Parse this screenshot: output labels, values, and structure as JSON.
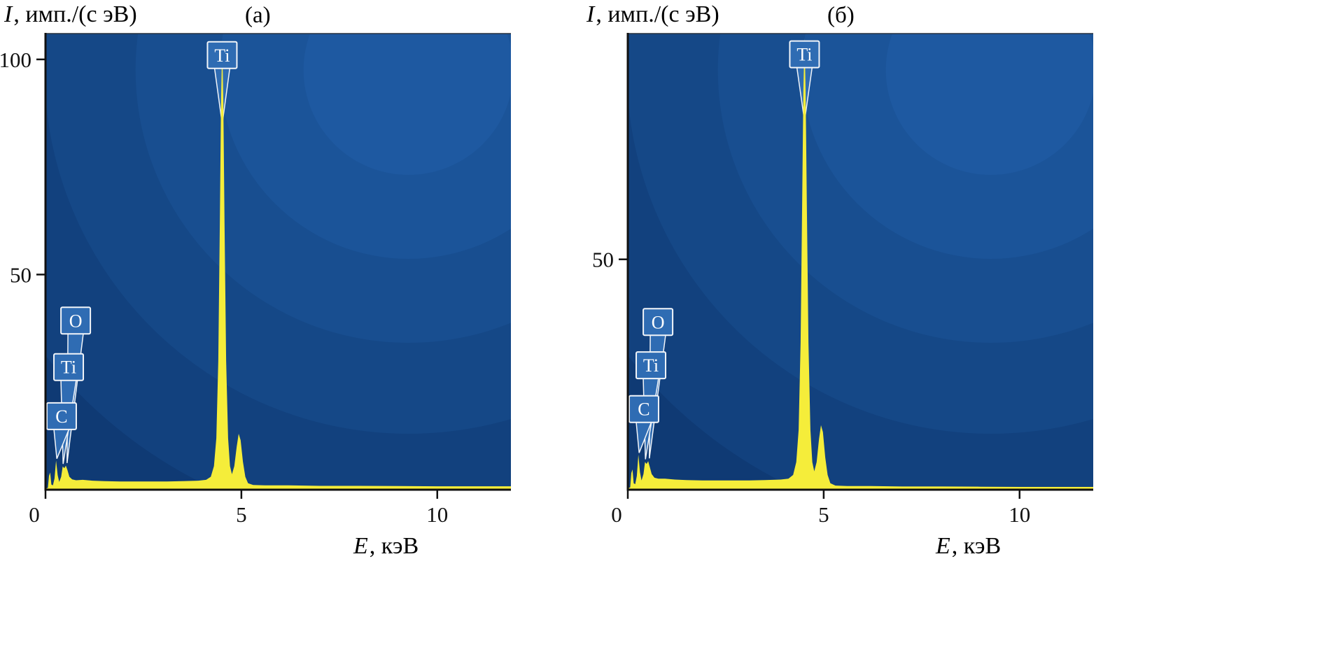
{
  "figure": {
    "kind": "EDS X-ray spectra, two panels"
  },
  "chart_data": [
    {
      "type": "area",
      "panel_label": "(а)",
      "title": "EDS spectrum (а)",
      "ylabel": "I, имп./(с эВ)",
      "ylabel_italic": "I",
      "ylabel_rest": ", имп./(с эВ)",
      "xlabel": "E, кэВ",
      "xlabel_italic": "E",
      "xlabel_rest": ", кэВ",
      "xlim": [
        0,
        11.88
      ],
      "ylim": [
        0,
        106
      ],
      "xticks": [
        0,
        5,
        10
      ],
      "yticks": [
        50,
        100
      ],
      "grid": false,
      "legend": null,
      "colors": {
        "spectrum": "#f5ed3a",
        "plot_bg": "#0f3a74",
        "bands": [
          "#12417e",
          "#154887",
          "#184e90",
          "#1b5499",
          "#1e59a1"
        ],
        "label_box": "#2f6cb3",
        "label_border": "#f2f5f9",
        "axis": "#111111"
      },
      "peaks": [
        {
          "element": "C",
          "energy_kev": 0.28,
          "intensity": 6.8
        },
        {
          "element": "Ti",
          "energy_kev": 0.45,
          "intensity": 5.4
        },
        {
          "element": "O",
          "energy_kev": 0.53,
          "intensity": 5.6
        },
        {
          "element": "Ti",
          "energy_kev": 4.51,
          "intensity": 104
        },
        {
          "element": "Ti",
          "energy_kev": 4.93,
          "intensity": 13
        }
      ],
      "points": [
        [
          0,
          0.3
        ],
        [
          0.06,
          0.4
        ],
        [
          0.09,
          3.2
        ],
        [
          0.12,
          4.0
        ],
        [
          0.15,
          1.2
        ],
        [
          0.19,
          1.0
        ],
        [
          0.23,
          2.6
        ],
        [
          0.27,
          6.8
        ],
        [
          0.31,
          3.4
        ],
        [
          0.35,
          1.8
        ],
        [
          0.4,
          3.0
        ],
        [
          0.44,
          5.4
        ],
        [
          0.48,
          5.0
        ],
        [
          0.52,
          5.6
        ],
        [
          0.56,
          4.6
        ],
        [
          0.61,
          3.0
        ],
        [
          0.68,
          2.4
        ],
        [
          0.78,
          2.2
        ],
        [
          0.95,
          2.3
        ],
        [
          1.2,
          2.1
        ],
        [
          1.5,
          2.0
        ],
        [
          1.9,
          1.9
        ],
        [
          2.3,
          1.9
        ],
        [
          2.7,
          1.9
        ],
        [
          3.1,
          1.9
        ],
        [
          3.5,
          2.0
        ],
        [
          3.9,
          2.1
        ],
        [
          4.1,
          2.3
        ],
        [
          4.22,
          3.0
        ],
        [
          4.3,
          5.5
        ],
        [
          4.36,
          12
        ],
        [
          4.41,
          30
        ],
        [
          4.45,
          62
        ],
        [
          4.48,
          90
        ],
        [
          4.51,
          104
        ],
        [
          4.54,
          90
        ],
        [
          4.57,
          62
        ],
        [
          4.61,
          30
        ],
        [
          4.66,
          12
        ],
        [
          4.71,
          5.5
        ],
        [
          4.76,
          3.6
        ],
        [
          4.82,
          5.5
        ],
        [
          4.88,
          10
        ],
        [
          4.93,
          13
        ],
        [
          4.98,
          11.5
        ],
        [
          5.04,
          6.5
        ],
        [
          5.1,
          3.0
        ],
        [
          5.17,
          1.5
        ],
        [
          5.3,
          1.1
        ],
        [
          5.6,
          1.0
        ],
        [
          6.2,
          1.0
        ],
        [
          7,
          0.9
        ],
        [
          8,
          0.9
        ],
        [
          9,
          0.85
        ],
        [
          10,
          0.8
        ],
        [
          11,
          0.8
        ],
        [
          11.88,
          0.8
        ]
      ],
      "annotations": [
        {
          "label": "Ti",
          "box_x_kev": 4.51,
          "box_y_val": 101.0,
          "tip_x_kev": 4.51,
          "tip_y_val": 85
        },
        {
          "label": "O",
          "box_x_kev": 0.77,
          "box_y_val": 39.3,
          "tip_x_kev": 0.55,
          "tip_y_val": 6.2
        },
        {
          "label": "Ti",
          "box_x_kev": 0.59,
          "box_y_val": 28.5,
          "tip_x_kev": 0.45,
          "tip_y_val": 6.0
        },
        {
          "label": "C",
          "box_x_kev": 0.41,
          "box_y_val": 17.1,
          "tip_x_kev": 0.29,
          "tip_y_val": 7.2
        }
      ]
    },
    {
      "type": "area",
      "panel_label": "(б)",
      "title": "EDS spectrum (б)",
      "ylabel": "I, имп./(с эВ)",
      "ylabel_italic": "I",
      "ylabel_rest": ", имп./(с эВ)",
      "xlabel": "E, кэВ",
      "xlabel_italic": "E",
      "xlabel_rest": ", кэВ",
      "xlim": [
        0,
        11.88
      ],
      "ylim": [
        0,
        99
      ],
      "xticks": [
        0,
        5,
        10
      ],
      "yticks": [
        50
      ],
      "grid": false,
      "legend": null,
      "colors": {
        "spectrum": "#f5ed3a",
        "plot_bg": "#0f3a74",
        "bands": [
          "#12417e",
          "#154887",
          "#184e90",
          "#1b5499",
          "#1e59a1"
        ],
        "label_box": "#2f6cb3",
        "label_border": "#f2f5f9",
        "axis": "#111111"
      },
      "peaks": [
        {
          "element": "C",
          "energy_kev": 0.28,
          "intensity": 7.6
        },
        {
          "element": "Ti",
          "energy_kev": 0.45,
          "intensity": 6.0
        },
        {
          "element": "O",
          "energy_kev": 0.53,
          "intensity": 6.2
        },
        {
          "element": "Ti",
          "energy_kev": 4.51,
          "intensity": 98
        },
        {
          "element": "Ti",
          "energy_kev": 4.93,
          "intensity": 14
        }
      ],
      "points": [
        [
          0,
          0.3
        ],
        [
          0.06,
          0.5
        ],
        [
          0.09,
          3.6
        ],
        [
          0.12,
          4.4
        ],
        [
          0.15,
          1.4
        ],
        [
          0.19,
          1.2
        ],
        [
          0.23,
          3.0
        ],
        [
          0.27,
          7.6
        ],
        [
          0.31,
          3.8
        ],
        [
          0.35,
          2.0
        ],
        [
          0.4,
          3.4
        ],
        [
          0.44,
          6.0
        ],
        [
          0.48,
          5.6
        ],
        [
          0.52,
          6.2
        ],
        [
          0.56,
          5.0
        ],
        [
          0.61,
          3.4
        ],
        [
          0.68,
          2.6
        ],
        [
          0.78,
          2.4
        ],
        [
          0.95,
          2.4
        ],
        [
          1.2,
          2.2
        ],
        [
          1.5,
          2.1
        ],
        [
          1.9,
          2.0
        ],
        [
          2.3,
          2.0
        ],
        [
          2.7,
          2.0
        ],
        [
          3.1,
          2.0
        ],
        [
          3.5,
          2.1
        ],
        [
          3.9,
          2.2
        ],
        [
          4.1,
          2.4
        ],
        [
          4.22,
          3.2
        ],
        [
          4.3,
          6.0
        ],
        [
          4.36,
          13
        ],
        [
          4.41,
          32
        ],
        [
          4.45,
          62
        ],
        [
          4.48,
          86
        ],
        [
          4.51,
          98
        ],
        [
          4.54,
          86
        ],
        [
          4.57,
          62
        ],
        [
          4.61,
          32
        ],
        [
          4.66,
          13
        ],
        [
          4.71,
          6.0
        ],
        [
          4.76,
          4.0
        ],
        [
          4.82,
          6.0
        ],
        [
          4.88,
          11
        ],
        [
          4.93,
          14
        ],
        [
          4.98,
          12.5
        ],
        [
          5.04,
          7.0
        ],
        [
          5.1,
          3.2
        ],
        [
          5.17,
          1.4
        ],
        [
          5.3,
          0.9
        ],
        [
          5.6,
          0.8
        ],
        [
          6.2,
          0.8
        ],
        [
          7,
          0.7
        ],
        [
          8,
          0.7
        ],
        [
          9,
          0.65
        ],
        [
          10,
          0.6
        ],
        [
          11,
          0.6
        ],
        [
          11.88,
          0.6
        ]
      ],
      "annotations": [
        {
          "label": "Ti",
          "box_x_kev": 4.51,
          "box_y_val": 94.5,
          "tip_x_kev": 4.51,
          "tip_y_val": 80
        },
        {
          "label": "O",
          "box_x_kev": 0.77,
          "box_y_val": 36.4,
          "tip_x_kev": 0.55,
          "tip_y_val": 6.8
        },
        {
          "label": "Ti",
          "box_x_kev": 0.59,
          "box_y_val": 27.0,
          "tip_x_kev": 0.45,
          "tip_y_val": 6.6
        },
        {
          "label": "C",
          "box_x_kev": 0.41,
          "box_y_val": 17.5,
          "tip_x_kev": 0.29,
          "tip_y_val": 8.0
        }
      ]
    }
  ]
}
